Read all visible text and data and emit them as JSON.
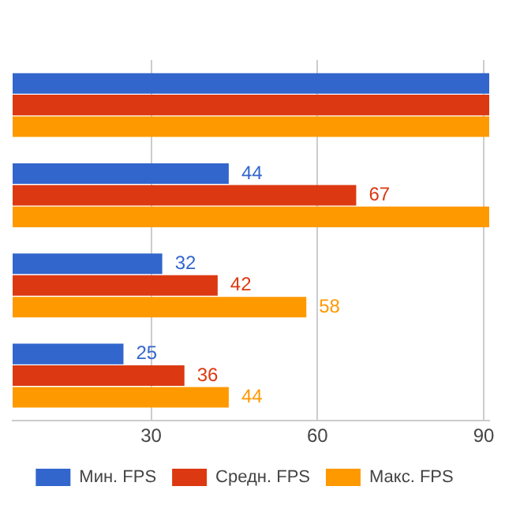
{
  "chart_data": {
    "type": "bar",
    "orientation": "horizontal",
    "categories": [
      null,
      null,
      null,
      null
    ],
    "series": [
      {
        "name": "Мин. FPS",
        "color": "#3366cc",
        "values": [
          91,
          44,
          32,
          25
        ],
        "value_labels": [
          null,
          "44",
          "32",
          "25"
        ]
      },
      {
        "name": "Средн. FPS",
        "color": "#dc3912",
        "values": [
          91,
          67,
          42,
          36
        ],
        "value_labels": [
          null,
          "67",
          "42",
          "36"
        ]
      },
      {
        "name": "Макс. FPS",
        "color": "#ff9900",
        "values": [
          91,
          91,
          58,
          44
        ],
        "value_labels": [
          null,
          null,
          "58",
          "44"
        ]
      }
    ],
    "xlim": [
      5,
      91
    ],
    "xticks": [
      30,
      60,
      90
    ],
    "grid": "x",
    "legend": "bottom"
  }
}
